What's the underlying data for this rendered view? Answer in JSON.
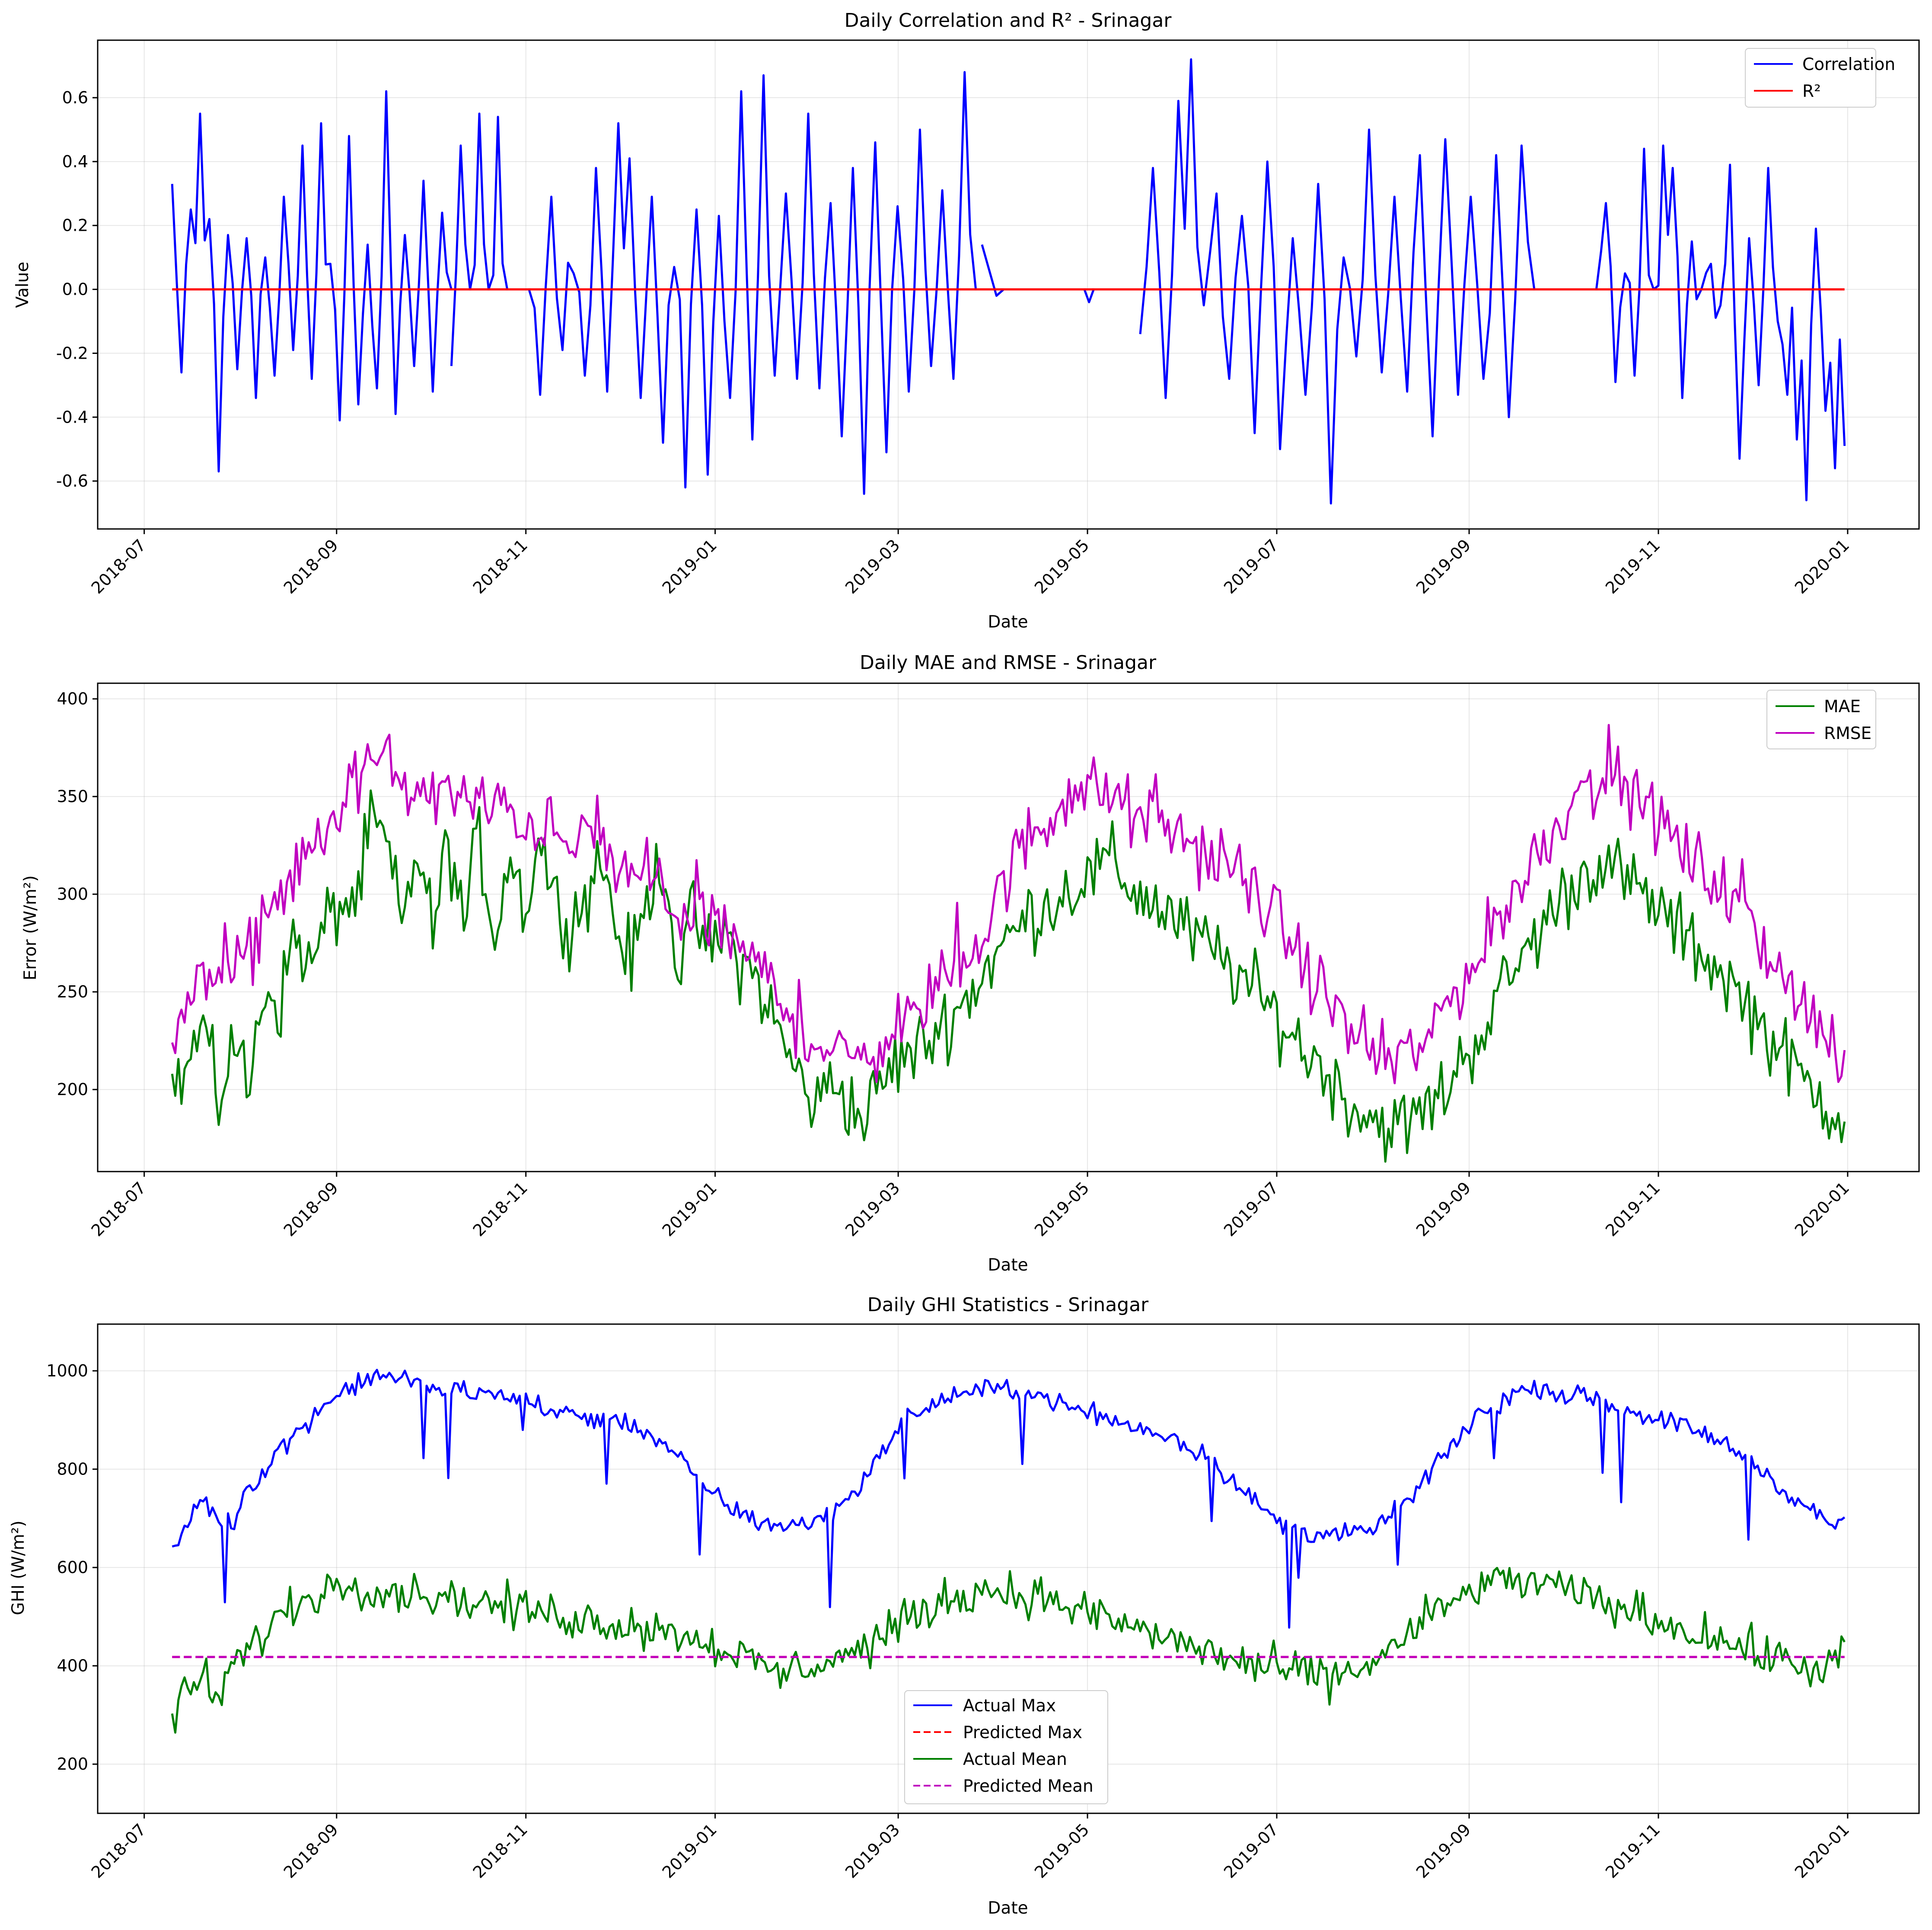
{
  "figure": {
    "background": "#ffffff"
  },
  "chart_data": [
    {
      "type": "line",
      "title": "Daily Correlation and R² - Srinagar",
      "xlabel": "Date",
      "ylabel": "Value",
      "x_range": [
        "2018-07-10",
        "2019-12-31"
      ],
      "x_ticks": [
        "2018-07",
        "2018-09",
        "2018-11",
        "2019-01",
        "2019-03",
        "2019-05",
        "2019-07",
        "2019-09",
        "2019-11",
        "2020-01"
      ],
      "ylim": [
        -0.75,
        0.78
      ],
      "y_ticks": [
        -0.6,
        -0.4,
        -0.2,
        0.0,
        0.2,
        0.4,
        0.6
      ],
      "grid": true,
      "legend": "upper right",
      "series": [
        {
          "name": "Correlation",
          "color": "#0000ff",
          "style": "solid",
          "segments": [
            {
              "start": "2018-07-10",
              "end": "2018-10-08",
              "anchors": [
                0.33,
                -0.26,
                0.25,
                0.55,
                0.22,
                -0.57,
                0.17,
                -0.25,
                0.16,
                -0.34,
                0.1,
                -0.27,
                0.29,
                -0.19,
                0.45,
                -0.28,
                0.52,
                0.08,
                -0.41,
                0.48,
                -0.36,
                0.14,
                -0.31,
                0.62,
                -0.39,
                0.17,
                -0.24,
                0.34,
                -0.32,
                0.24,
                0.0
              ]
            },
            {
              "start": "2018-10-08",
              "end": "2018-10-26",
              "anchors": [
                -0.24,
                0.45,
                0.0,
                0.55,
                0.0,
                0.54,
                0.0
              ]
            },
            {
              "start": "2018-11-02",
              "end": "2019-03-26",
              "anchors": [
                0.0,
                -0.33,
                0.29,
                -0.19,
                0.05,
                -0.27,
                0.38,
                -0.32,
                0.52,
                0.41,
                -0.34,
                0.29,
                -0.48,
                0.07,
                -0.62,
                0.25,
                -0.58,
                0.23,
                -0.34,
                0.62,
                -0.47,
                0.67,
                -0.27,
                0.3,
                -0.28,
                0.55,
                -0.31,
                0.27,
                -0.46,
                0.38,
                -0.64,
                0.46,
                -0.51,
                0.26,
                -0.32,
                0.5,
                -0.24,
                0.31,
                -0.28,
                0.68,
                0.0
              ]
            },
            {
              "start": "2019-03-28",
              "end": "2019-04-04",
              "anchors": [
                0.14,
                0.06,
                -0.02,
                0.0
              ]
            },
            {
              "start": "2019-04-30",
              "end": "2019-05-03",
              "anchors": [
                0.0,
                -0.04,
                0.0
              ]
            },
            {
              "start": "2019-05-18",
              "end": "2019-09-22",
              "anchors": [
                -0.14,
                0.38,
                -0.34,
                0.59,
                0.72,
                -0.05,
                0.3,
                -0.28,
                0.23,
                -0.45,
                0.4,
                -0.5,
                0.16,
                -0.33,
                0.33,
                -0.67,
                0.1,
                -0.21,
                0.5,
                -0.26,
                0.29,
                -0.32,
                0.42,
                -0.46,
                0.47,
                -0.33,
                0.29,
                -0.28,
                0.42,
                -0.4,
                0.45,
                0.0
              ]
            },
            {
              "start": "2019-10-12",
              "end": "2019-12-31",
              "anchors": [
                0.0,
                0.27,
                -0.29,
                0.05,
                -0.27,
                0.44,
                0.0,
                0.45,
                0.38,
                -0.34,
                0.15,
                0.0,
                0.08,
                -0.05,
                0.39,
                -0.53,
                0.16,
                -0.3,
                0.38,
                -0.1,
                -0.33,
                -0.47,
                -0.66,
                0.19,
                -0.38,
                -0.56,
                -0.49
              ]
            }
          ]
        },
        {
          "name": "R²",
          "color": "#ff0000",
          "style": "solid",
          "segments": [
            {
              "start": "2018-07-10",
              "end": "2019-12-31",
              "anchors": [
                0.0,
                0.0
              ]
            }
          ]
        }
      ]
    },
    {
      "type": "line",
      "title": "Daily MAE and RMSE - Srinagar",
      "xlabel": "Date",
      "ylabel": "Error (W/m²)",
      "x_range": [
        "2018-07-10",
        "2019-12-31"
      ],
      "x_ticks": [
        "2018-07",
        "2018-09",
        "2018-11",
        "2019-01",
        "2019-03",
        "2019-05",
        "2019-07",
        "2019-09",
        "2019-11",
        "2020-01"
      ],
      "ylim": [
        158,
        408
      ],
      "y_ticks": [
        200,
        250,
        300,
        350,
        400
      ],
      "grid": true,
      "legend": "upper right",
      "series": [
        {
          "name": "MAE",
          "color": "#008000",
          "style": "solid",
          "segments": [
            {
              "start": "2018-07-10",
              "end": "2019-12-31",
              "anchors": [
                200,
                211,
                235,
                192,
                228,
                198,
                255,
                242,
                282,
                260,
                285,
                295,
                296,
                338,
                324,
                282,
                325,
                280,
                328,
                284,
                330,
                278,
                322,
                292,
                330,
                295,
                286,
                300,
                320,
                280,
                265,
                298,
                320,
                260,
                290,
                270,
                280,
                265,
                258,
                240,
                220,
                205,
                190,
                208,
                195,
                183,
                200,
                212,
                218,
                222,
                232,
                240,
                248,
                262,
                272,
                282,
                290,
                295,
                300,
                305,
                310,
                318,
                308,
                300,
                295,
                290,
                282,
                275,
                270,
                262,
                255,
                245,
                238,
                228,
                218,
                212,
                200,
                192,
                186,
                183,
                180,
                185,
                192,
                200,
                215,
                225,
                240,
                255,
                268,
                280,
                292,
                302,
                310,
                318,
                312,
                305,
                298,
                292,
                282,
                275,
                268,
                260,
                250,
                240,
                228,
                218,
                208,
                198,
                192,
                186
              ]
            }
          ]
        },
        {
          "name": "RMSE",
          "color": "#c000c0",
          "style": "solid",
          "segments": [
            {
              "start": "2018-07-10",
              "end": "2019-12-31",
              "anchors": [
                227,
                245,
                250,
                262,
                258,
                270,
                285,
                300,
                310,
                318,
                330,
                345,
                356,
                370,
                365,
                360,
                354,
                348,
                352,
                350,
                345,
                342,
                345,
                335,
                340,
                330,
                322,
                330,
                332,
                315,
                310,
                305,
                300,
                295,
                290,
                285,
                280,
                275,
                268,
                258,
                244,
                236,
                226,
                222,
                216,
                213,
                220,
                228,
                235,
                240,
                248,
                256,
                264,
                275,
                292,
                310,
                325,
                335,
                342,
                350,
                355,
                352,
                348,
                342,
                338,
                335,
                330,
                326,
                322,
                316,
                310,
                302,
                293,
                283,
                270,
                258,
                245,
                234,
                225,
                217,
                213,
                215,
                222,
                232,
                245,
                258,
                270,
                284,
                296,
                310,
                324,
                336,
                348,
                356,
                360,
                355,
                350,
                343,
                336,
                326,
                318,
                310,
                302,
                292,
                282,
                272,
                260,
                246,
                232,
                221,
                212
              ]
            }
          ]
        }
      ]
    },
    {
      "type": "line",
      "title": "Daily GHI Statistics - Srinagar",
      "xlabel": "Date",
      "ylabel": "GHI (W/m²)",
      "x_range": [
        "2018-07-10",
        "2019-12-31"
      ],
      "x_ticks": [
        "2018-07",
        "2018-09",
        "2018-11",
        "2019-01",
        "2019-03",
        "2019-05",
        "2019-07",
        "2019-09",
        "2019-11",
        "2020-01"
      ],
      "ylim": [
        100,
        1095
      ],
      "y_ticks": [
        200,
        400,
        600,
        800,
        1000
      ],
      "grid": true,
      "legend": "lower center",
      "series": [
        {
          "name": "Actual Max",
          "color": "#0000ff",
          "style": "solid",
          "segments": [
            {
              "start": "2018-07-10",
              "end": "2019-12-31",
              "anchors": [
                625,
                690,
                740,
                700,
                690,
                770,
                790,
                840,
                870,
                900,
                930,
                950,
                970,
                985,
                990,
                985,
                975,
                965,
                960,
                958,
                955,
                952,
                948,
                940,
                930,
                920,
                915,
                910,
                905,
                900,
                895,
                880,
                860,
                830,
                800,
                770,
                740,
                715,
                700,
                690,
                680,
                685,
                695,
                710,
                730,
                760,
                800,
                850,
                890,
                915,
                930,
                945,
                955,
                960,
                965,
                960,
                955,
                950,
                940,
                930,
                920,
                910,
                900,
                890,
                880,
                870,
                860,
                845,
                825,
                800,
                770,
                740,
                710,
                690,
                680,
                670,
                668,
                665,
                670,
                680,
                700,
                730,
                760,
                800,
                840,
                880,
                910,
                930,
                950,
                960,
                965,
                958,
                950,
                945,
                940,
                930,
                920,
                910,
                900,
                890,
                880,
                870,
                855,
                835,
                810,
                790,
                760,
                730,
                710,
                695,
                690
              ]
            }
          ]
        },
        {
          "name": "Predicted Max",
          "color": "#ff0000",
          "style": "dashed",
          "segments": [
            {
              "start": "2018-07-10",
              "end": "2019-12-31",
              "anchors": [
                418,
                418
              ]
            }
          ]
        },
        {
          "name": "Actual Mean",
          "color": "#008000",
          "style": "solid",
          "segments": [
            {
              "start": "2018-07-10",
              "end": "2019-12-31",
              "anchors": [
                305,
                340,
                380,
                330,
                400,
                430,
                470,
                500,
                520,
                540,
                555,
                565,
                570,
                560,
                555,
                550,
                548,
                545,
                540,
                535,
                530,
                525,
                520,
                515,
                510,
                505,
                500,
                495,
                490,
                488,
                485,
                480,
                475,
                470,
                460,
                450,
                440,
                425,
                410,
                395,
                385,
                390,
                400,
                410,
                420,
                430,
                445,
                465,
                485,
                505,
                520,
                535,
                545,
                550,
                555,
                550,
                545,
                540,
                530,
                520,
                510,
                500,
                490,
                480,
                470,
                460,
                450,
                440,
                430,
                420,
                410,
                400,
                395,
                390,
                385,
                380,
                378,
                380,
                390,
                410,
                430,
                455,
                480,
                505,
                525,
                545,
                560,
                570,
                575,
                572,
                565,
                558,
                550,
                540,
                530,
                520,
                510,
                500,
                490,
                480,
                470,
                460,
                450,
                440,
                430,
                420,
                410,
                400,
                395,
                400,
                435
              ]
            }
          ]
        },
        {
          "name": "Predicted Mean",
          "color": "#c000c0",
          "style": "dashed",
          "segments": [
            {
              "start": "2018-07-10",
              "end": "2019-12-31",
              "anchors": [
                418,
                418
              ]
            }
          ]
        }
      ]
    }
  ]
}
